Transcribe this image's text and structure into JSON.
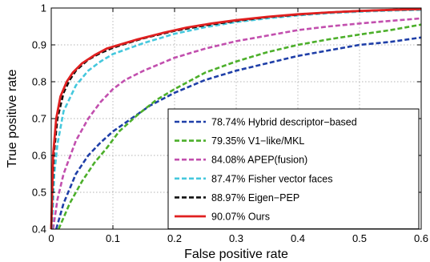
{
  "chart_data": {
    "type": "line",
    "title": "",
    "xlabel": "False positive rate",
    "ylabel": "True positive rate",
    "xlim": [
      0,
      0.6
    ],
    "ylim": [
      0.4,
      1.0
    ],
    "xticks": [
      0,
      0.1,
      0.2,
      0.3,
      0.4,
      0.5,
      0.6
    ],
    "xtick_labels": [
      "0",
      "0.1",
      "0.2",
      "0.3",
      "0.4",
      "0.5",
      "0.6"
    ],
    "yticks": [
      0.4,
      0.5,
      0.6,
      0.7,
      0.8,
      0.9,
      1.0
    ],
    "ytick_labels": [
      "0.4",
      "0.5",
      "0.6",
      "0.7",
      "0.8",
      "0.9",
      "1"
    ],
    "grid": true,
    "legend_position": "bottom-right",
    "series": [
      {
        "name": "78.74%  Hybrid descriptor−based",
        "color": "#1f3fa8",
        "dashed": true,
        "x": [
          0.008,
          0.02,
          0.04,
          0.06,
          0.08,
          0.1,
          0.13,
          0.16,
          0.2,
          0.25,
          0.3,
          0.35,
          0.4,
          0.45,
          0.5,
          0.55,
          0.6
        ],
        "y": [
          0.4,
          0.47,
          0.55,
          0.6,
          0.635,
          0.665,
          0.7,
          0.735,
          0.77,
          0.805,
          0.83,
          0.85,
          0.87,
          0.885,
          0.9,
          0.908,
          0.92
        ]
      },
      {
        "name": "79.35%  V1−like/MKL",
        "color": "#4caf2a",
        "dashed": true,
        "x": [
          0.012,
          0.03,
          0.05,
          0.07,
          0.09,
          0.11,
          0.14,
          0.17,
          0.2,
          0.25,
          0.3,
          0.35,
          0.4,
          0.45,
          0.5,
          0.55,
          0.6
        ],
        "y": [
          0.4,
          0.47,
          0.53,
          0.58,
          0.62,
          0.665,
          0.71,
          0.75,
          0.78,
          0.825,
          0.855,
          0.88,
          0.9,
          0.915,
          0.928,
          0.94,
          0.955
        ]
      },
      {
        "name": "84.08%  APEP(fusion)",
        "color": "#c24fae",
        "dashed": true,
        "x": [
          0.003,
          0.01,
          0.02,
          0.04,
          0.06,
          0.08,
          0.1,
          0.12,
          0.15,
          0.2,
          0.25,
          0.3,
          0.35,
          0.4,
          0.45,
          0.5,
          0.55,
          0.6
        ],
        "y": [
          0.4,
          0.48,
          0.55,
          0.64,
          0.7,
          0.745,
          0.78,
          0.805,
          0.83,
          0.865,
          0.89,
          0.91,
          0.925,
          0.94,
          0.95,
          0.958,
          0.965,
          0.972
        ]
      },
      {
        "name": "87.47%  Fisher vector faces",
        "color": "#45c8dd",
        "dashed": true,
        "x": [
          0.001,
          0.005,
          0.01,
          0.02,
          0.04,
          0.06,
          0.08,
          0.1,
          0.15,
          0.2,
          0.25,
          0.3,
          0.35,
          0.4,
          0.45,
          0.5,
          0.55,
          0.6
        ],
        "y": [
          0.4,
          0.55,
          0.63,
          0.72,
          0.79,
          0.83,
          0.855,
          0.875,
          0.905,
          0.93,
          0.948,
          0.962,
          0.972,
          0.98,
          0.986,
          0.99,
          0.993,
          0.995
        ]
      },
      {
        "name": "88.97%  Eigen−PEP",
        "color": "#111111",
        "dashed": true,
        "x": [
          0.0,
          0.004,
          0.01,
          0.02,
          0.03,
          0.04,
          0.06,
          0.08,
          0.1,
          0.12,
          0.15,
          0.2,
          0.25,
          0.3,
          0.35,
          0.4,
          0.45,
          0.5,
          0.55,
          0.6
        ],
        "y": [
          0.4,
          0.6,
          0.7,
          0.77,
          0.805,
          0.83,
          0.86,
          0.878,
          0.892,
          0.903,
          0.918,
          0.938,
          0.953,
          0.965,
          0.975,
          0.982,
          0.988,
          0.992,
          0.995,
          0.997
        ]
      },
      {
        "name": "90.07%  Ours",
        "color": "#e02020",
        "dashed": false,
        "x": [
          0.0,
          0.003,
          0.008,
          0.015,
          0.025,
          0.035,
          0.05,
          0.07,
          0.09,
          0.11,
          0.14,
          0.18,
          0.22,
          0.26,
          0.3,
          0.35,
          0.4,
          0.45,
          0.5,
          0.55,
          0.6
        ],
        "y": [
          0.4,
          0.6,
          0.7,
          0.76,
          0.8,
          0.825,
          0.85,
          0.872,
          0.89,
          0.9,
          0.915,
          0.932,
          0.947,
          0.958,
          0.967,
          0.976,
          0.983,
          0.988,
          0.992,
          0.995,
          0.997
        ]
      }
    ]
  }
}
